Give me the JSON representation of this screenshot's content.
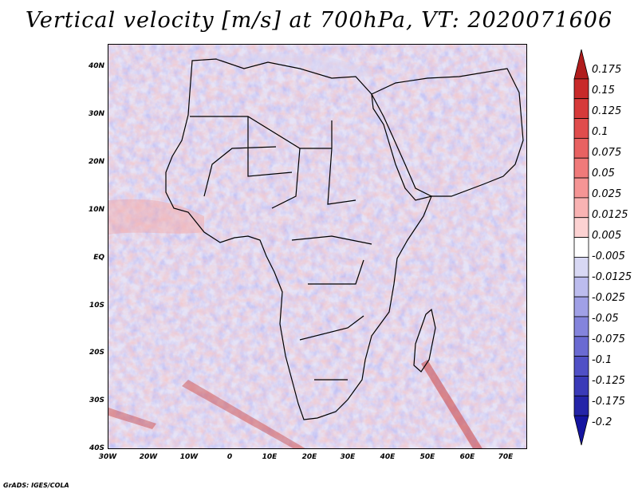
{
  "title": "Vertical velocity [m/s] at 700hPa, VT: 2020071606",
  "footer": "GrADS: IGES/COLA",
  "axes": {
    "y_ticks": [
      "40N",
      "30N",
      "20N",
      "10N",
      "EQ",
      "10S",
      "20S",
      "30S",
      "40S"
    ],
    "x_ticks": [
      "30W",
      "20W",
      "10W",
      "0",
      "10E",
      "20E",
      "30E",
      "40E",
      "50E",
      "60E",
      "70E"
    ]
  },
  "colorbar": {
    "levels": [
      "0.175",
      "0.15",
      "0.125",
      "0.1",
      "0.075",
      "0.05",
      "0.025",
      "0.0125",
      "0.005",
      "-0.005",
      "-0.0125",
      "-0.025",
      "-0.05",
      "-0.075",
      "-0.1",
      "-0.125",
      "-0.175",
      "-0.2"
    ],
    "colors": [
      "#b01c1c",
      "#c82a2a",
      "#d63a3a",
      "#e04d4d",
      "#e86262",
      "#f07a7a",
      "#f59595",
      "#f9b3b3",
      "#fcd2d2",
      "#ffffff",
      "#d8d8f4",
      "#bcbcee",
      "#a0a0e6",
      "#8484dc",
      "#6a6ad2",
      "#5050c6",
      "#3a3ab8",
      "#2424a8",
      "#1414a0"
    ]
  }
}
